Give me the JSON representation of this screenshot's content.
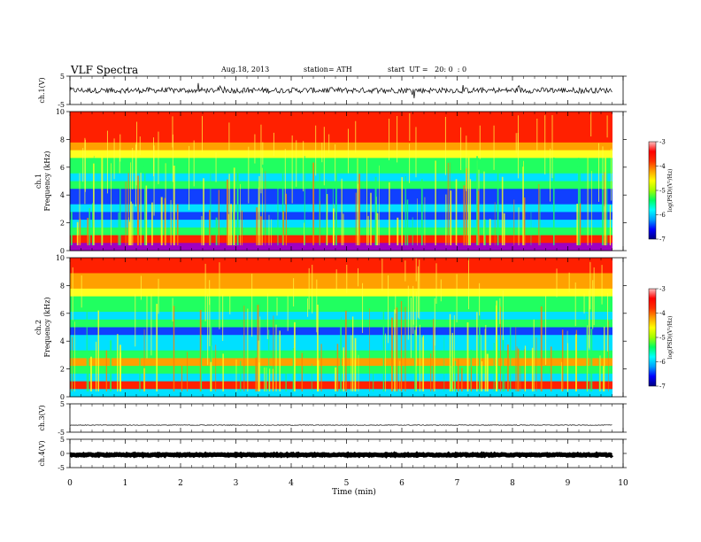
{
  "header": {
    "title": "VLF  Spectra",
    "date": "Aug.18, 2013",
    "station": "station= ATH",
    "start": "start  UT =   20: 0  : 0"
  },
  "chart_data": [
    {
      "type": "line",
      "name": "ch1-waveform",
      "ylabel": "ch.1(V)",
      "ylim": [
        -5,
        5
      ],
      "yticks": [
        "5",
        "-5"
      ],
      "baseline": 0,
      "amplitude_approx": 1.0
    },
    {
      "type": "heatmap",
      "name": "ch1-spectrogram",
      "ylabel": "ch.1\nFrequency (kHz)",
      "ylim": [
        0,
        10
      ],
      "yticks": [
        "0",
        "2",
        "4",
        "6",
        "8",
        "10"
      ],
      "colorbar": {
        "label": "log(PSD)(V²/Hz)",
        "range": [
          -7,
          -3
        ],
        "ticks": [
          "-3",
          "-4",
          "-5",
          "-6",
          "-7"
        ]
      },
      "rows_high_to_low": [
        "red",
        "red",
        "red",
        "red",
        "orange",
        "yellow",
        "green",
        "green",
        "cyan",
        "green",
        "blue",
        "blue",
        "cyan",
        "blue",
        "cyan",
        "green",
        "red",
        "purple"
      ]
    },
    {
      "type": "heatmap",
      "name": "ch2-spectrogram",
      "ylabel": "ch.2\nFrequency (kHz)",
      "ylim": [
        0,
        10
      ],
      "yticks": [
        "0",
        "2",
        "4",
        "6",
        "8",
        "10"
      ],
      "colorbar": {
        "label": "log(PSD)(V²/Hz)",
        "range": [
          -7,
          -3
        ],
        "ticks": [
          "-3",
          "-4",
          "-5",
          "-6",
          "-7"
        ]
      },
      "rows_high_to_low": [
        "red",
        "red",
        "orange",
        "orange",
        "yellow",
        "green",
        "green",
        "cyan",
        "green",
        "blue",
        "cyan",
        "cyan",
        "green",
        "orange",
        "green",
        "cyan",
        "red",
        "cyan"
      ]
    },
    {
      "type": "line",
      "name": "ch3-waveform",
      "ylabel": "ch.3(V)",
      "ylim": [
        -5,
        5
      ],
      "yticks": [
        "5",
        "-5"
      ],
      "baseline": -2.5,
      "amplitude_approx": 0.1
    },
    {
      "type": "line",
      "name": "ch4-waveform",
      "ylabel": "ch.4(V)",
      "ylim": [
        -5,
        5
      ],
      "yticks": [
        "5",
        "0",
        "-5"
      ],
      "baseline": -0.5,
      "amplitude_approx": 0.2
    }
  ],
  "x_axis": {
    "label": "Time  (min)",
    "range": [
      0,
      10
    ],
    "ticks": [
      "0",
      "1",
      "2",
      "3",
      "4",
      "5",
      "6",
      "7",
      "8",
      "9",
      "10"
    ],
    "data_end": 9.8
  },
  "colors": {
    "scale": [
      "#000080",
      "#0000ff",
      "#00a0ff",
      "#00ffff",
      "#00ff60",
      "#a0ff00",
      "#ffff00",
      "#ffa000",
      "#ff3000",
      "#ff0000",
      "#ffc0c0"
    ],
    "trace": "#000000",
    "frame": "#000000"
  }
}
